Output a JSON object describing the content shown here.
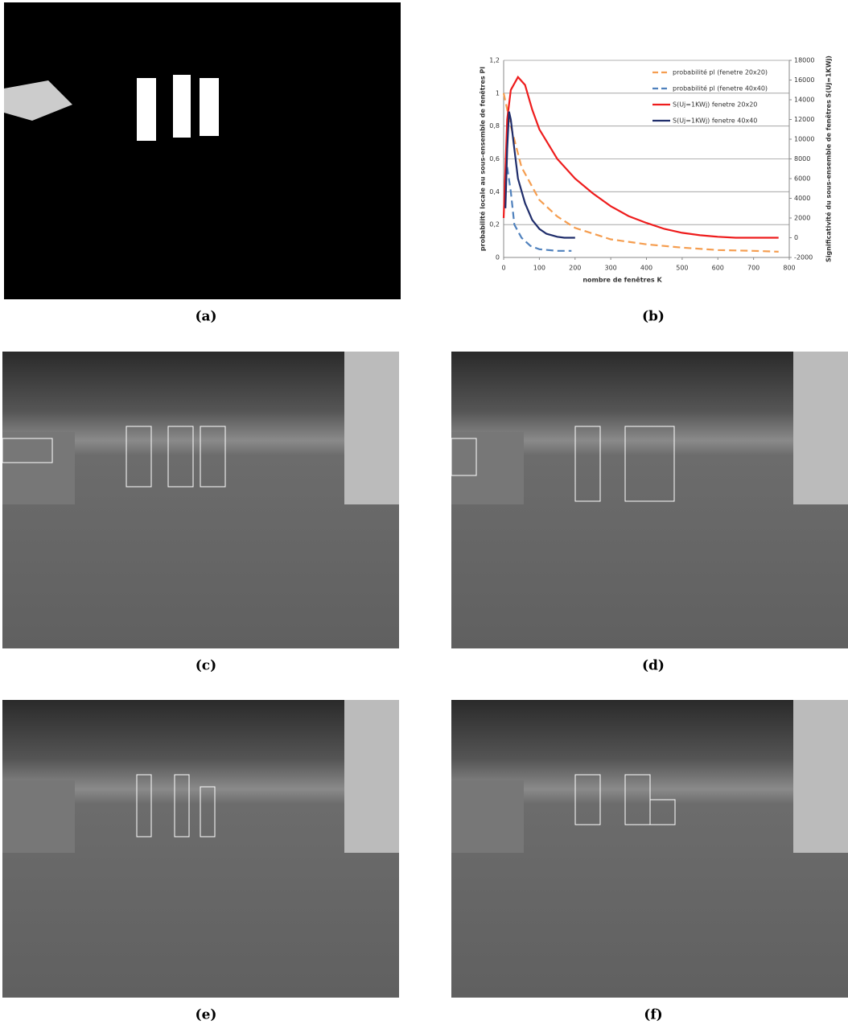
{
  "captions": [
    "(a)",
    "(b)",
    "(c)",
    "(d)",
    "(e)",
    "(f)"
  ],
  "chart_data": {
    "type": "line",
    "xlabel": "nombre de fenêtres K",
    "ylabel": "probabilité locale au sous-ensemble de fenêtres Pl",
    "y2label": "Significativité du sous-ensemble de fenêtres S(Uj=1KWj)",
    "xlim": [
      0,
      800
    ],
    "xticks": [
      0,
      100,
      200,
      300,
      400,
      500,
      600,
      700,
      800
    ],
    "ylim": [
      0,
      1.2
    ],
    "yticks": [
      0,
      {
        "value": 0.2,
        "label": "0,2"
      },
      {
        "value": 0.4,
        "label": "0,4"
      },
      {
        "value": 0.6,
        "label": "0,6"
      },
      {
        "value": 0.8,
        "label": "0,8"
      },
      1,
      {
        "value": 1.2,
        "label": "1,2"
      }
    ],
    "y2lim": [
      -2000,
      18000
    ],
    "y2ticks": [
      -2000,
      0,
      2000,
      4000,
      6000,
      8000,
      10000,
      12000,
      14000,
      16000,
      18000
    ],
    "grid": true,
    "legend": "upper right",
    "series": [
      {
        "name": "probabilité pl (fenetre 20x20)",
        "color": "#f59d4f",
        "style": "dashed",
        "x": [
          0,
          20,
          50,
          100,
          150,
          200,
          300,
          400,
          500,
          600,
          700,
          770
        ],
        "values": [
          1.0,
          0.8,
          0.55,
          0.35,
          0.25,
          0.18,
          0.11,
          0.08,
          0.06,
          0.045,
          0.04,
          0.035
        ]
      },
      {
        "name": "probabilité pl (fenetre 40x40)",
        "color": "#4f81bd",
        "style": "dashed",
        "x": [
          10,
          20,
          30,
          50,
          75,
          100,
          150,
          190
        ],
        "values": [
          0.55,
          0.4,
          0.2,
          0.12,
          0.07,
          0.05,
          0.04,
          0.04
        ]
      },
      {
        "name": "S(Uj=1KWj) fenetre 20x20",
        "color": "#ee1c1c",
        "style": "solid",
        "axis": "y2",
        "x": [
          0,
          10,
          20,
          40,
          60,
          80,
          100,
          150,
          200,
          250,
          300,
          350,
          400,
          450,
          500,
          550,
          600,
          650,
          700,
          770
        ],
        "values": [
          2000,
          12000,
          15000,
          16300,
          15500,
          13000,
          11000,
          8000,
          6000,
          4500,
          3200,
          2200,
          1500,
          900,
          500,
          250,
          100,
          0,
          0,
          0
        ]
      },
      {
        "name": "S(Uj=1KWj) fenetre 40x40",
        "color": "#1f2d6b",
        "style": "solid",
        "axis": "y2",
        "x": [
          5,
          10,
          15,
          20,
          30,
          40,
          60,
          80,
          100,
          120,
          150,
          170,
          200
        ],
        "values": [
          3000,
          9000,
          12800,
          12000,
          9000,
          6000,
          3500,
          1800,
          900,
          400,
          100,
          0,
          0
        ]
      }
    ]
  }
}
